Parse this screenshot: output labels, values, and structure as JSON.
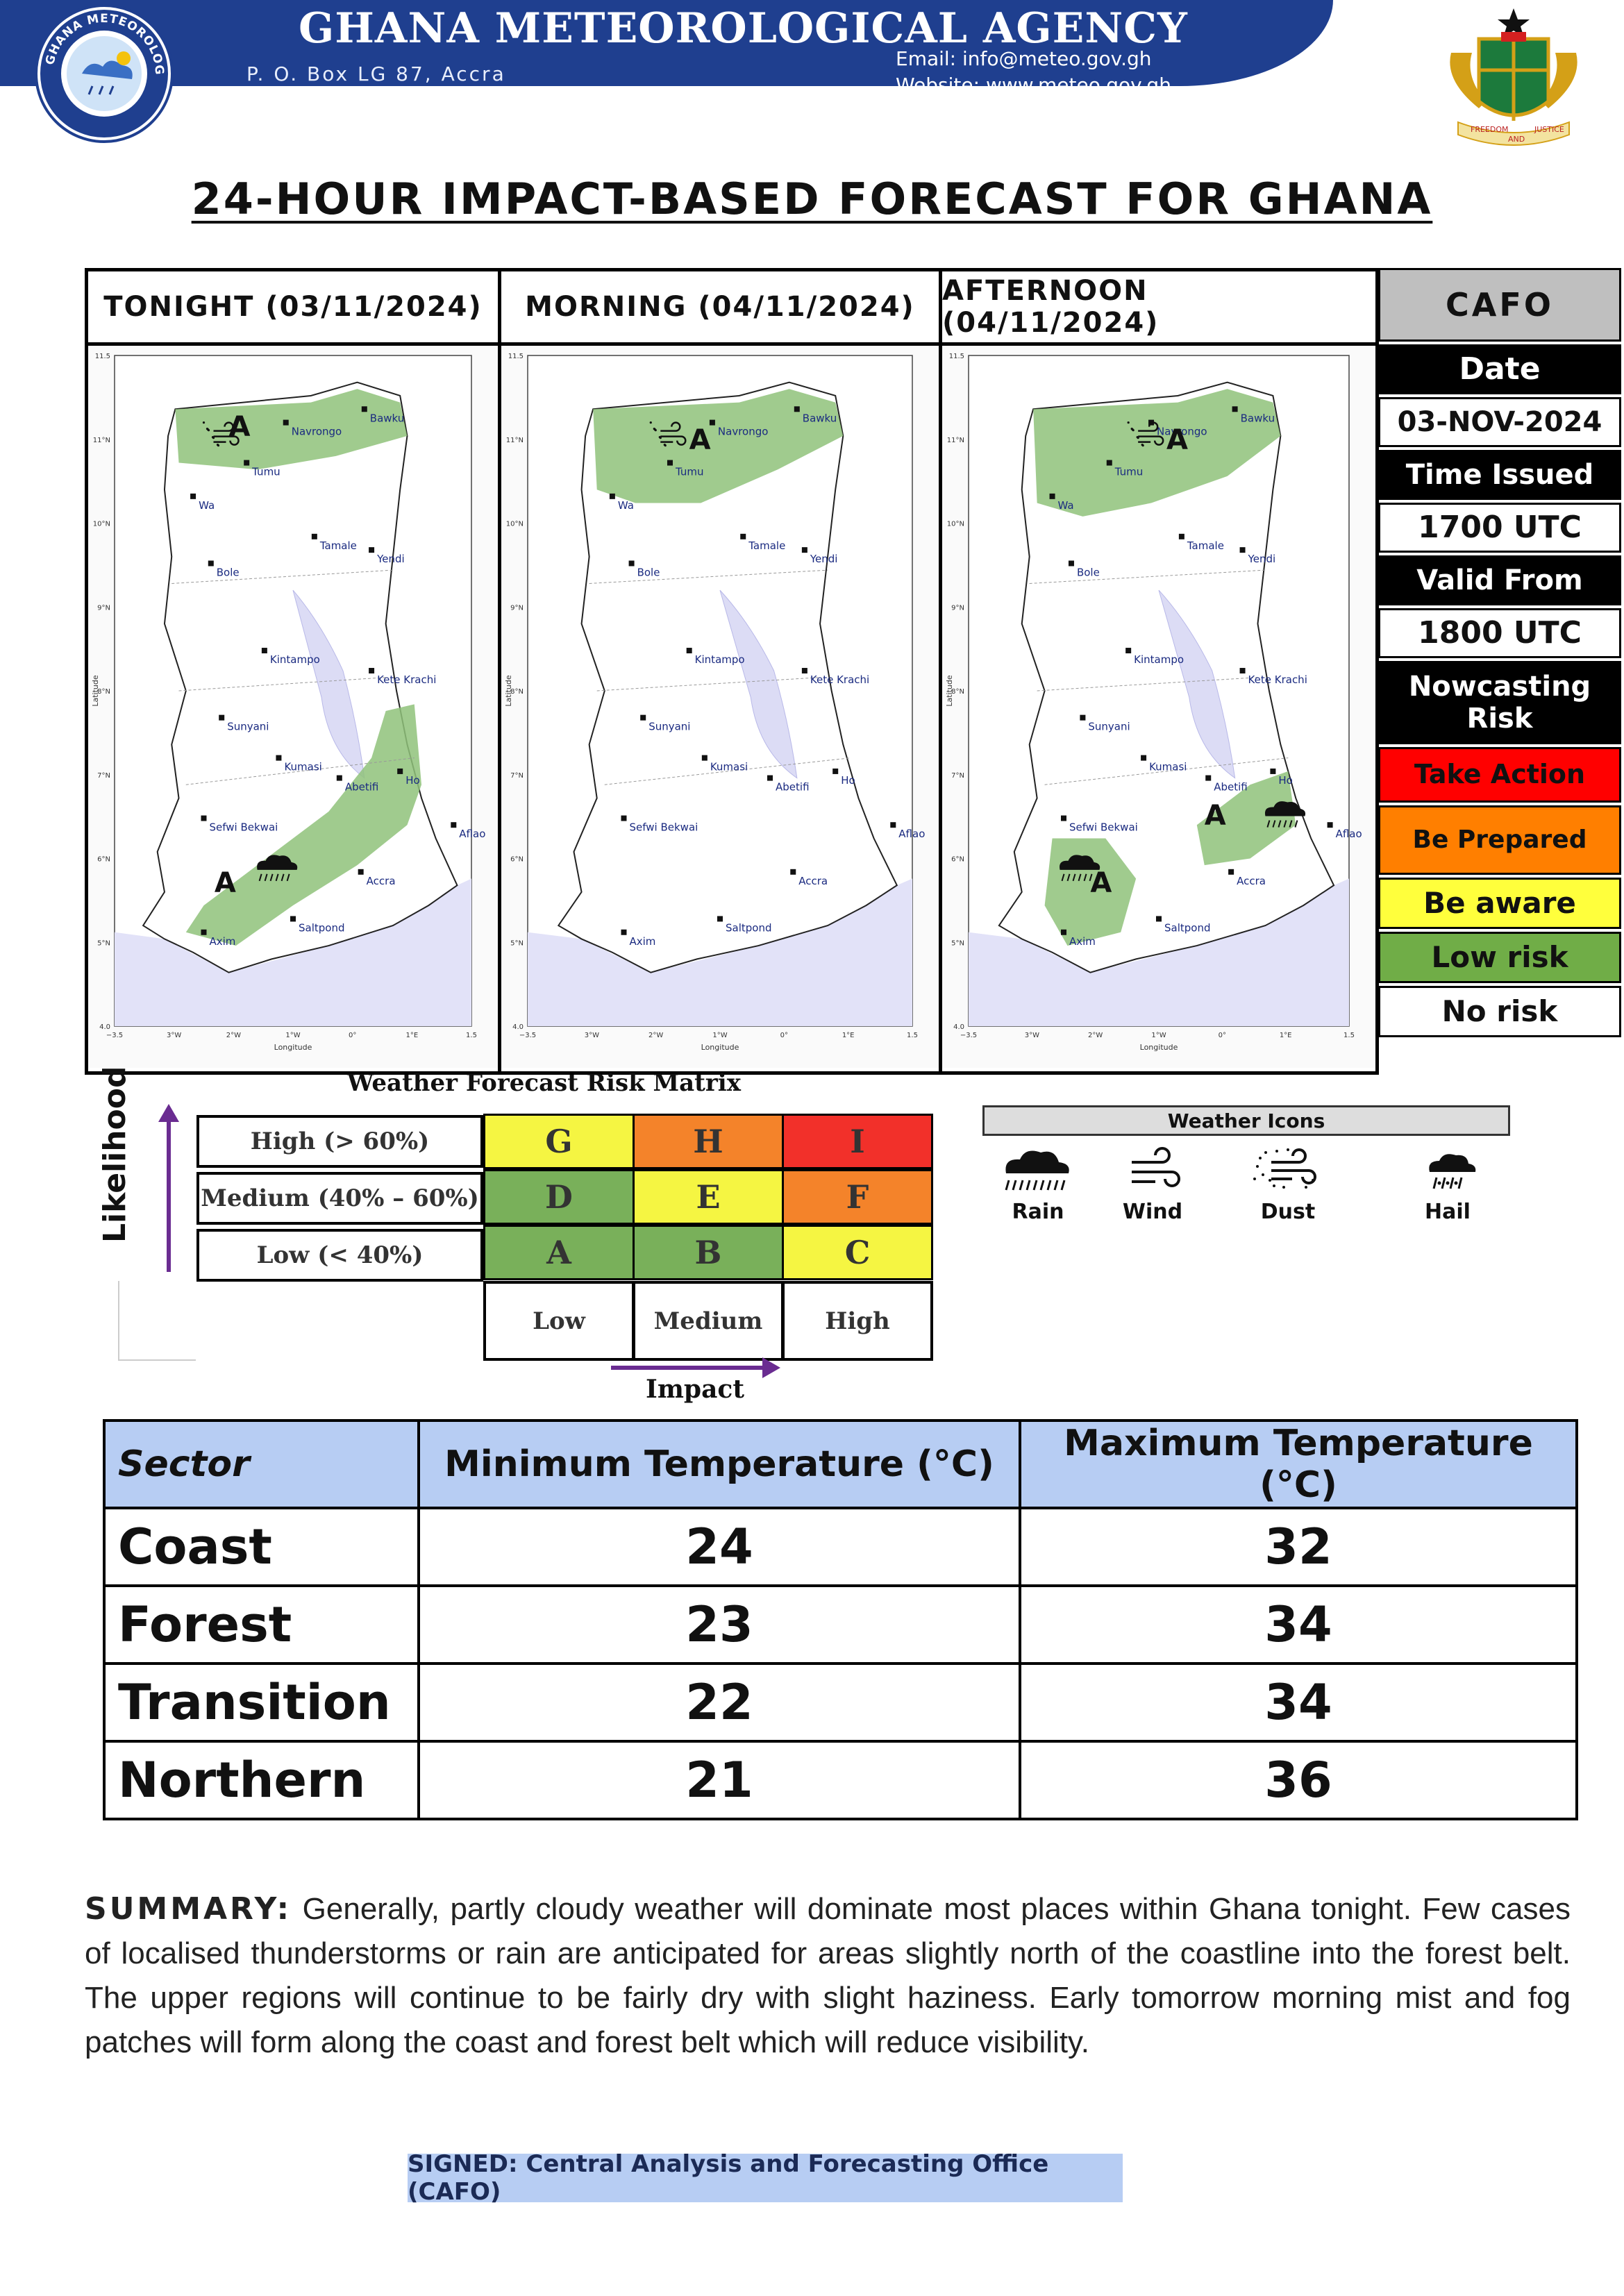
{
  "header": {
    "agency": "GHANA METEOROLOGICAL AGENCY",
    "pobox": "P. O. Box LG 87, Accra",
    "email": "Email: info@meteo.gov.gh",
    "website": "Website: www.meteo.gov.gh",
    "logo_text": "GHANA METEOROLOGICAL AGENCY",
    "coat_of_arms_motto": [
      "FREEDOM",
      "AND",
      "JUSTICE"
    ]
  },
  "title": "24-HOUR IMPACT-BASED FORECAST FOR GHANA",
  "panels": [
    {
      "heading": "TONIGHT (03/11/2024)"
    },
    {
      "heading": "MORNING (04/11/2024)"
    },
    {
      "heading": "AFTERNOON (04/11/2024)"
    }
  ],
  "map": {
    "cities": [
      "Bawku",
      "Navrongo",
      "Tumu",
      "Wa",
      "Tamale",
      "Yendi",
      "Bole",
      "Kintampo",
      "Kete Krachi",
      "Sunyani",
      "Kumasi",
      "Abetifi",
      "Ho",
      "Sefwi Bekwai",
      "Aflao",
      "Accra",
      "Axim",
      "Saltpond"
    ],
    "y_ticks": [
      "11.5",
      "11°N",
      "10°N",
      "9°N",
      "8°N",
      "7°N",
      "6°N",
      "5°N",
      "4.0"
    ],
    "x_ticks": [
      "−3.5",
      "3°W",
      "2°W",
      "1°W",
      "0°",
      "1°E",
      "1.5"
    ],
    "xlabel": "Longitude",
    "ylabel": "Latitude",
    "risk_letter": "A",
    "risk_color": "#8fc27a"
  },
  "cafo": {
    "heading": "CAFO",
    "date_label": "Date",
    "date_value": "03-NOV-2024",
    "time_issued_label": "Time Issued",
    "time_issued_value": "1700 UTC",
    "valid_from_label": "Valid From",
    "valid_from_value": "1800 UTC",
    "nowcasting_label": "Nowcasting Risk",
    "levels": [
      {
        "label": "Take Action",
        "color": "#ff0000"
      },
      {
        "label": "Be Prepared",
        "color": "#ff7f00"
      },
      {
        "label": "Be aware",
        "color": "#ffff3c"
      },
      {
        "label": "Low risk",
        "color": "#70ad47"
      },
      {
        "label": "No risk",
        "color": "#ffffff"
      }
    ]
  },
  "risk_matrix": {
    "title": "Weather Forecast Risk Matrix",
    "y_label": "Likelihood",
    "x_label": "Impact",
    "rows": [
      {
        "label": "High (> 60%)",
        "cells": [
          "G",
          "H",
          "I"
        ],
        "colors": [
          "#f5f542",
          "#f4832a",
          "#f2302a"
        ]
      },
      {
        "label": "Medium (40% – 60%)",
        "cells": [
          "D",
          "E",
          "F"
        ],
        "colors": [
          "#79b05a",
          "#f5f542",
          "#f4832a"
        ]
      },
      {
        "label": "Low (< 40%)",
        "cells": [
          "A",
          "B",
          "C"
        ],
        "colors": [
          "#79b05a",
          "#79b05a",
          "#f5f542"
        ]
      }
    ],
    "columns": [
      "Low",
      "Medium",
      "High"
    ]
  },
  "weather_icons": {
    "title": "Weather Icons",
    "items": [
      {
        "icon": "rain-icon",
        "label": "Rain"
      },
      {
        "icon": "wind-icon",
        "label": "Wind"
      },
      {
        "icon": "dust-icon",
        "label": "Dust"
      },
      {
        "icon": "hail-icon",
        "label": "Hail"
      }
    ]
  },
  "temperature": {
    "headers": [
      "Sector",
      "Minimum Temperature (°C)",
      "Maximum Temperature (°C)"
    ],
    "rows": [
      {
        "sector": "Coast",
        "min": "24",
        "max": "32"
      },
      {
        "sector": "Forest",
        "min": "23",
        "max": "34"
      },
      {
        "sector": "Transition",
        "min": "22",
        "max": "34"
      },
      {
        "sector": "Northern",
        "min": "21",
        "max": "36"
      }
    ]
  },
  "summary": {
    "label": "SUMMARY:",
    "text": "Generally, partly cloudy weather will dominate most places within Ghana tonight. Few cases of localised thunderstorms or rain are anticipated for areas slightly north of the coastline into the forest belt. The upper regions will continue to be fairly dry with slight haziness. Early tomorrow morning mist and fog patches will form along the coast and forest belt which will reduce visibility."
  },
  "signed": "SIGNED: Central Analysis and Forecasting Office (CAFO)"
}
